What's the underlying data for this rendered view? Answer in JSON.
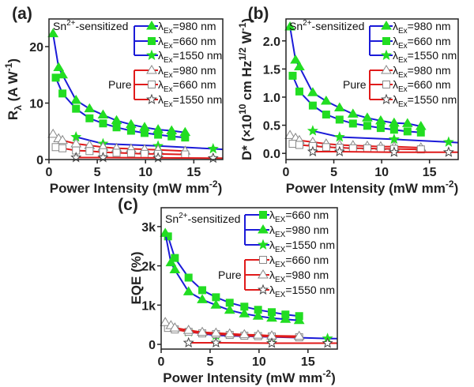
{
  "colors": {
    "sn_line": "#1b1bd8",
    "pure_line": "#e01b1b",
    "sn_marker": "#22dd22",
    "pure_marker": "#ffffff",
    "pure_edge": "#888888",
    "axis": "#222222"
  },
  "chart_data": [
    {
      "type": "line",
      "panel_label": "(a)",
      "xlabel": {
        "main": "Power Intensity (mW mm",
        "sup": "-2",
        "end": ")"
      },
      "ylabel": {
        "main": "R",
        "sub": "λ",
        "mid": " (A W",
        "sup": "-1",
        "end": ")"
      },
      "xlim": [
        0,
        18
      ],
      "ylim": [
        0,
        24.9
      ],
      "xticks": [
        0,
        5,
        10,
        15
      ],
      "yticks": [
        0,
        10,
        20
      ],
      "ytick_labels": [
        "0",
        "10",
        "20"
      ],
      "legend_groups": [
        {
          "title": "Sn2+-sensitized",
          "title_main": "Sn",
          "title_sup": "2+",
          "title_end": "-sensitized"
        },
        {
          "title": "Pure"
        }
      ],
      "series": [
        {
          "group": 0,
          "marker": "triangle",
          "label_sub": "Ex",
          "label_rest": "=980 nm",
          "x": [
            0.42,
            1.0,
            1.4,
            2.8,
            4.2,
            5.6,
            7.0,
            8.5,
            9.9,
            11.3,
            12.7,
            14.1
          ],
          "y": [
            22.3,
            16.3,
            15.0,
            10.5,
            9.0,
            7.9,
            6.9,
            6.2,
            5.7,
            5.3,
            5.1,
            4.8
          ]
        },
        {
          "group": 0,
          "marker": "square",
          "label_sub": "Ex",
          "label_rest": "=660 nm",
          "x": [
            0.7,
            1.4,
            2.8,
            4.2,
            5.6,
            7.0,
            8.5,
            9.9,
            11.3,
            12.7,
            14.1
          ],
          "y": [
            14.5,
            11.7,
            9.0,
            7.3,
            6.4,
            5.7,
            5.1,
            4.7,
            4.4,
            4.1,
            3.9
          ]
        },
        {
          "group": 0,
          "marker": "star",
          "label_sub": "Ex",
          "label_rest": "=1550 nm",
          "x": [
            2.8,
            5.6,
            11.3,
            17.0,
            18.0
          ],
          "y": [
            4.0,
            2.8,
            2.4,
            1.9,
            1.8
          ],
          "markers_n": 4
        },
        {
          "group": 1,
          "marker": "triangle",
          "label_sub": "Ex",
          "label_rest": "=980 nm",
          "x": [
            0.42,
            1.0,
            1.4,
            2.8,
            4.2,
            5.6,
            7.0,
            8.5,
            9.9,
            11.3,
            14.1
          ],
          "y": [
            4.5,
            3.7,
            3.4,
            2.8,
            2.5,
            2.2,
            2.0,
            1.9,
            1.8,
            1.7,
            1.5
          ]
        },
        {
          "group": 1,
          "marker": "square",
          "label_sub": "Ex",
          "label_rest": "=660 nm",
          "x": [
            0.7,
            1.4,
            2.8,
            4.2,
            5.6,
            7.0,
            8.5,
            9.9,
            11.3,
            14.1
          ],
          "y": [
            2.2,
            2.0,
            1.6,
            1.5,
            1.3,
            1.2,
            1.1,
            1.0,
            1.0,
            0.9
          ]
        },
        {
          "group": 1,
          "marker": "star",
          "label_sub": "Ex",
          "label_rest": "=1550 nm",
          "x": [
            2.8,
            5.6,
            11.3,
            17.0,
            18.0
          ],
          "y": [
            0.35,
            0.35,
            0.3,
            0.25,
            0.25
          ],
          "markers_n": 4
        }
      ]
    },
    {
      "type": "line",
      "panel_label": "(b)",
      "xlabel": {
        "main": "Power Intensity (mW mm",
        "sup": "-2",
        "end": ")"
      },
      "ylabel": {
        "main": "D* (×10",
        "sup": "10",
        "mid": " cm Hz",
        "sup2": "1/2",
        "mid2": " W",
        "sup3": "-1",
        "end": ")"
      },
      "xlim": [
        0,
        18
      ],
      "ylim": [
        -0.11,
        2.39
      ],
      "xticks": [
        0,
        5,
        10,
        15
      ],
      "yticks": [
        0,
        0.5,
        1.0,
        1.5,
        2.0
      ],
      "ytick_labels": [
        "0.0",
        "0.5",
        "1.0",
        "1.5",
        "2.0"
      ],
      "legend_groups": [
        {
          "title": "Sn2+-sensitized",
          "title_main": "Sn",
          "title_sup": "2+",
          "title_end": "-sensitized"
        },
        {
          "title": "Pure"
        }
      ],
      "series": [
        {
          "group": 0,
          "marker": "triangle",
          "label_sub": "Ex",
          "label_rest": "=980 nm",
          "x": [
            0.42,
            1.0,
            1.4,
            2.8,
            4.2,
            5.6,
            7.0,
            8.5,
            9.9,
            11.3,
            12.7,
            14.1
          ],
          "y": [
            2.25,
            1.66,
            1.54,
            1.08,
            0.93,
            0.81,
            0.7,
            0.63,
            0.58,
            0.54,
            0.53,
            0.48
          ]
        },
        {
          "group": 0,
          "marker": "square",
          "label_sub": "Ex",
          "label_rest": "=660 nm",
          "x": [
            0.7,
            1.4,
            2.8,
            4.2,
            5.6,
            7.0,
            8.5,
            9.9,
            11.3,
            12.7,
            14.1
          ],
          "y": [
            1.38,
            1.1,
            0.85,
            0.69,
            0.6,
            0.53,
            0.49,
            0.45,
            0.42,
            0.39,
            0.37
          ]
        },
        {
          "group": 0,
          "marker": "star",
          "label_sub": "Ex",
          "label_rest": "=1550 nm",
          "x": [
            2.8,
            5.6,
            11.3,
            17.0,
            18.0
          ],
          "y": [
            0.4,
            0.29,
            0.25,
            0.2,
            0.19
          ],
          "markers_n": 4
        },
        {
          "group": 1,
          "marker": "triangle",
          "label_sub": "Ex",
          "label_rest": "=980 nm",
          "x": [
            0.42,
            1.0,
            1.4,
            2.8,
            4.2,
            5.6,
            7.0,
            8.5,
            9.9,
            11.3,
            14.1
          ],
          "y": [
            0.32,
            0.27,
            0.23,
            0.2,
            0.17,
            0.15,
            0.14,
            0.13,
            0.12,
            0.12,
            0.1
          ]
        },
        {
          "group": 1,
          "marker": "square",
          "label_sub": "Ex",
          "label_rest": "=660 nm",
          "x": [
            0.7,
            1.4,
            2.8,
            4.2,
            5.6,
            7.0,
            8.5,
            9.9,
            11.3,
            14.1
          ],
          "y": [
            0.17,
            0.15,
            0.13,
            0.11,
            0.1,
            0.09,
            0.09,
            0.08,
            0.08,
            0.07
          ]
        },
        {
          "group": 1,
          "marker": "star",
          "label_sub": "Ex",
          "label_rest": "=1550 nm",
          "x": [
            2.8,
            5.6,
            11.3,
            17.0,
            18.0
          ],
          "y": [
            0.03,
            0.03,
            0.02,
            0.02,
            0.02
          ],
          "markers_n": 4
        }
      ]
    },
    {
      "type": "line",
      "panel_label": "(c)",
      "xlabel": {
        "main": "Power Intensity (mW mm",
        "sup": "-2",
        "end": ")"
      },
      "ylabel": {
        "main": "EQE (%)"
      },
      "xlim": [
        0,
        18
      ],
      "ylim": [
        -120,
        3480
      ],
      "xticks": [
        0,
        5,
        10,
        15
      ],
      "yticks": [
        0,
        1000,
        2000,
        3000
      ],
      "ytick_labels": [
        "0",
        "1k",
        "2k",
        "3k"
      ],
      "legend_groups": [
        {
          "title": "Sn2+-sensitized",
          "title_main": "Sn",
          "title_sup": "2+",
          "title_end": "-sensitized"
        },
        {
          "title": "Pure"
        }
      ],
      "series": [
        {
          "group": 0,
          "marker": "square",
          "label_sub": "EX",
          "label_rest": "=660 nm",
          "x": [
            0.7,
            1.4,
            2.8,
            4.2,
            5.6,
            7.0,
            8.5,
            9.9,
            11.3,
            12.7,
            14.1
          ],
          "y": [
            2750,
            2200,
            1700,
            1380,
            1200,
            1060,
            960,
            880,
            820,
            760,
            720
          ]
        },
        {
          "group": 0,
          "marker": "triangle",
          "label_sub": "EX",
          "label_rest": "=980 nm",
          "x": [
            0.42,
            1.0,
            1.4,
            2.8,
            4.2,
            5.6,
            7.0,
            8.5,
            9.9,
            11.3,
            12.7,
            14.1
          ],
          "y": [
            2830,
            2080,
            1900,
            1340,
            1140,
            1000,
            870,
            780,
            720,
            670,
            640,
            610
          ]
        },
        {
          "group": 0,
          "marker": "star",
          "label_sub": "EX",
          "label_rest": "=1550 nm",
          "x": [
            2.8,
            5.6,
            11.3,
            17.0,
            18.0
          ],
          "y": [
            320,
            230,
            190,
            150,
            145
          ],
          "markers_n": 4
        },
        {
          "group": 1,
          "marker": "square",
          "label_sub": "EX",
          "label_rest": "=660 nm",
          "x": [
            0.7,
            1.4,
            2.8,
            4.2,
            5.6,
            7.0,
            8.5,
            9.9,
            11.3,
            14.1
          ],
          "y": [
            420,
            380,
            320,
            280,
            260,
            240,
            220,
            210,
            200,
            180
          ]
        },
        {
          "group": 1,
          "marker": "triangle",
          "label_sub": "EX",
          "label_rest": "=980 nm",
          "x": [
            0.42,
            1.0,
            1.4,
            2.8,
            4.2,
            5.6,
            7.0,
            8.5,
            9.9,
            11.3,
            14.1
          ],
          "y": [
            560,
            480,
            420,
            360,
            310,
            290,
            270,
            250,
            240,
            220,
            210
          ]
        },
        {
          "group": 1,
          "marker": "star",
          "label_sub": "EX",
          "label_rest": "=1550 nm",
          "x": [
            2.8,
            5.6,
            11.3,
            17.0,
            18.0
          ],
          "y": [
            40,
            40,
            30,
            30,
            30
          ],
          "markers_n": 4
        }
      ]
    }
  ]
}
